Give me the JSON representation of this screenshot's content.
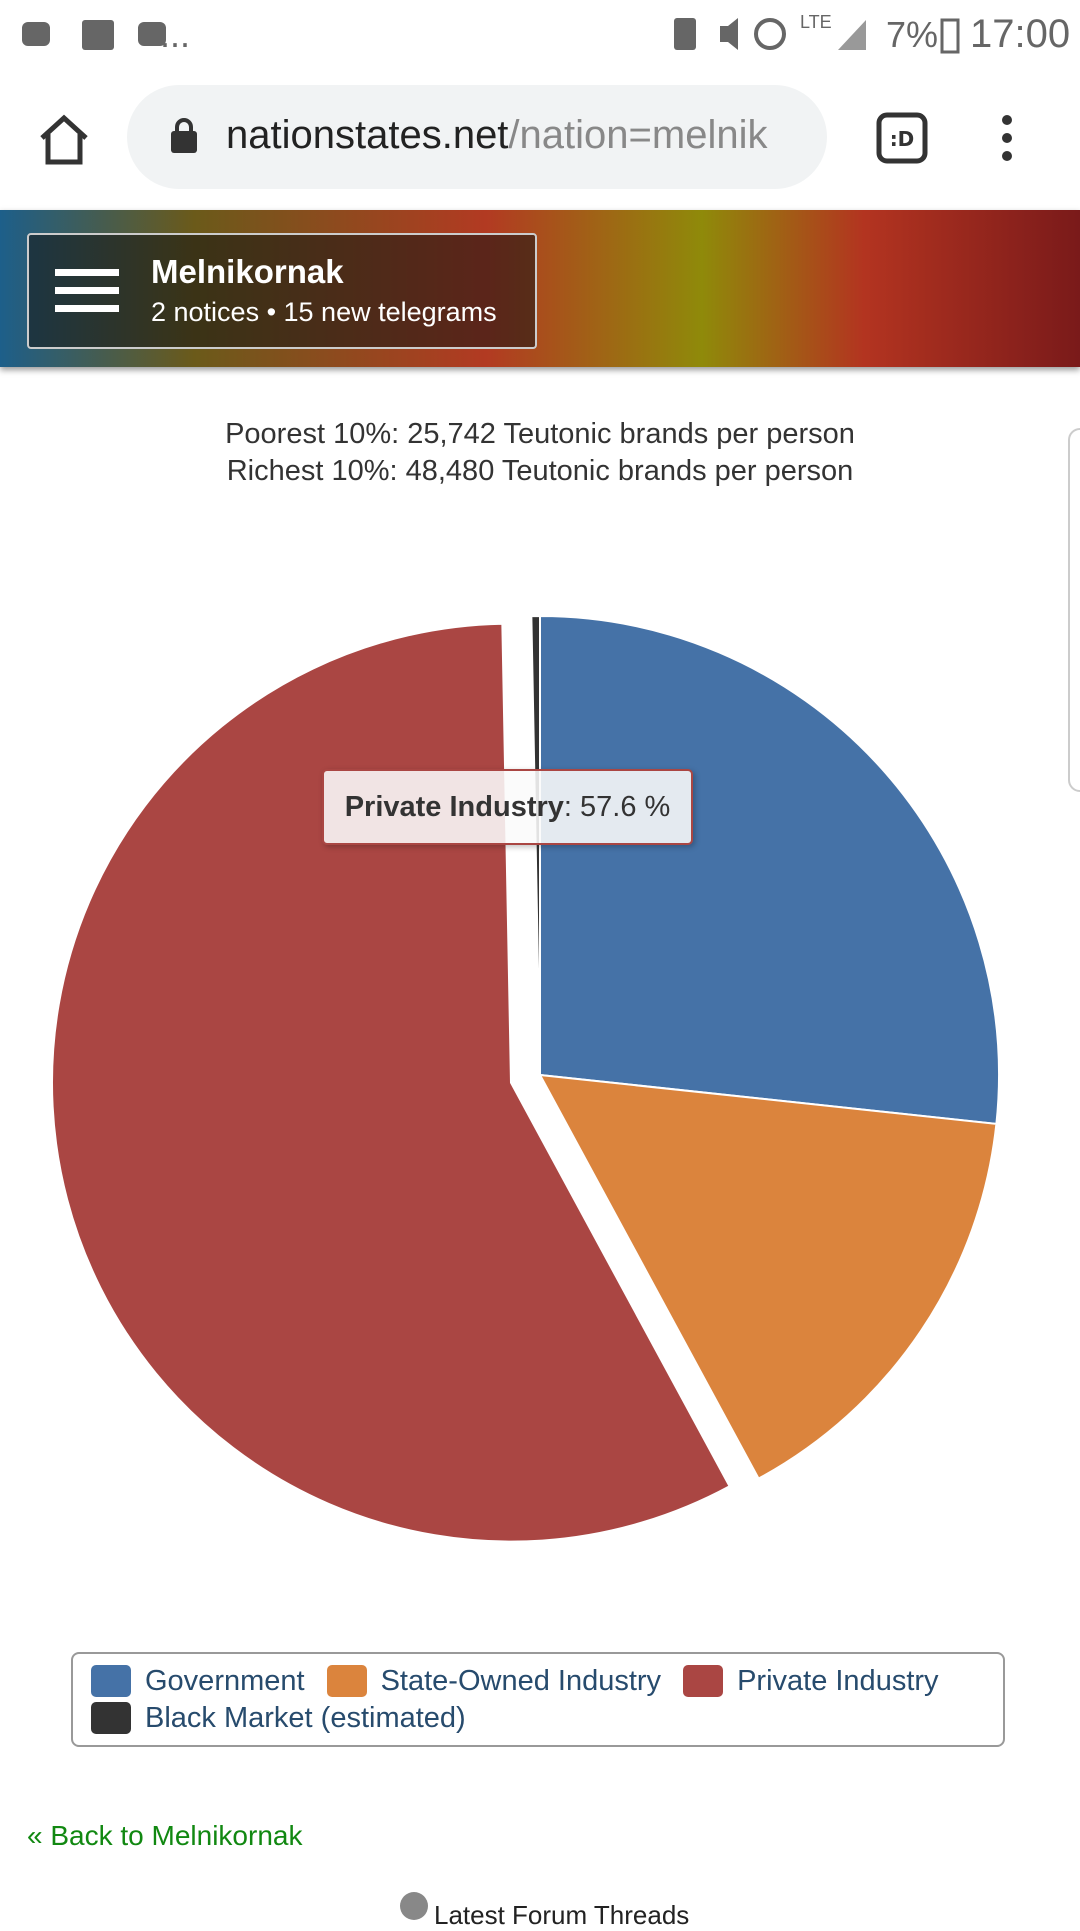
{
  "status_bar": {
    "overflow": "...",
    "network": "LTE",
    "battery": "7%",
    "time": "17:00"
  },
  "browser": {
    "url_host": "nationstates.net",
    "url_path": "/nation=melnik"
  },
  "header": {
    "nation": "Melnikornak",
    "notices": "2 notices • 15 new telegrams"
  },
  "income": [
    "Poorest 10%: 25,742 Teutonic brands per person",
    "Richest 10%: 48,480 Teutonic brands per person"
  ],
  "chart_data": {
    "type": "pie",
    "categories": [
      "Government",
      "State-Owned Industry",
      "Private Industry",
      "Black Market (estimated)"
    ],
    "values": [
      26.7,
      15.4,
      57.6,
      0.3
    ],
    "colors": [
      "#4572a7",
      "#db843d",
      "#aa4643",
      "#333333"
    ],
    "exploded": "Private Industry",
    "tooltip": {
      "name": "Private Industry",
      "text": ": 57.6 %"
    },
    "legend": "bottom"
  },
  "back_link": "« Back to Melnikornak",
  "footer": "Latest Forum Threads"
}
